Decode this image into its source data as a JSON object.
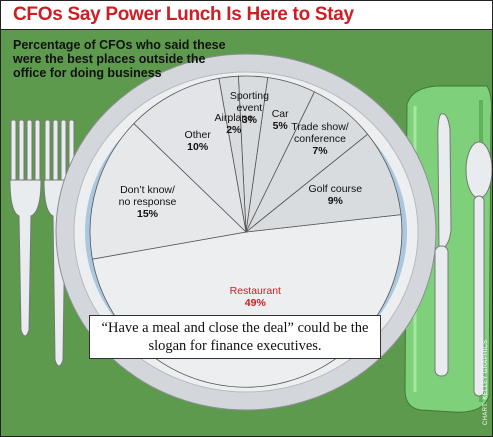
{
  "title": "CFOs Say Power Lunch Is Here to Stay",
  "quote": "“Have a meal and close the deal” could be the slogan for finance executives.",
  "credit": "CHART: KELLEY GRAPHICS",
  "colors": {
    "background_green": "#5e9a4e",
    "title_red": "#cc1f24",
    "highlight_red": "#cc1f24",
    "napkin_green": "#7fd07a",
    "plate_rim": "#a9c8e0"
  },
  "chart_data": {
    "type": "pie",
    "title": "Percentage of CFOs who said these were the best places outside the office for doing business",
    "unit": "%",
    "slices": [
      {
        "label": "Restaurant",
        "value": 49,
        "display": "49%",
        "highlight": true
      },
      {
        "label": "Golf course",
        "value": 9,
        "display": "9%"
      },
      {
        "label": "Trade show/ conference",
        "value": 7,
        "display": "7%"
      },
      {
        "label": "Car",
        "value": 5,
        "display": "5%"
      },
      {
        "label": "Sporting event",
        "value": 3,
        "display": "3%"
      },
      {
        "label": "Airplane",
        "value": 2,
        "display": "2%"
      },
      {
        "label": "Other",
        "value": 10,
        "display": "10%"
      },
      {
        "label": "Don’t know/ no response",
        "value": 15,
        "display": "15%"
      }
    ]
  }
}
